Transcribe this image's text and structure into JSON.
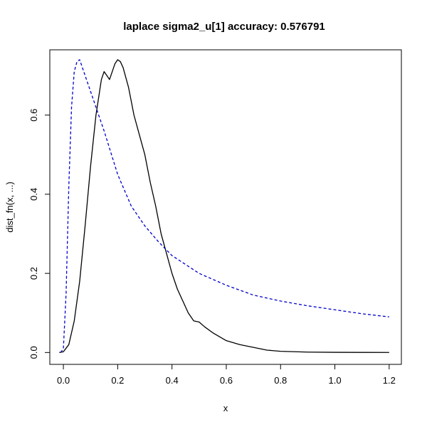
{
  "chart_data": {
    "type": "line",
    "title": "laplace sigma2_u[1] accuracy: 0.576791",
    "xlabel": "x",
    "ylabel": "dist_fn(x, ...)",
    "xlim": [
      -0.05,
      1.245
    ],
    "ylim": [
      -0.03,
      0.765
    ],
    "x_ticks": [
      0.0,
      0.2,
      0.4,
      0.6,
      0.8,
      1.0,
      1.2
    ],
    "x_tick_labels": [
      "0.0",
      "0.2",
      "0.4",
      "0.6",
      "0.8",
      "1.0",
      "1.2"
    ],
    "y_ticks": [
      0.0,
      0.2,
      0.4,
      0.6
    ],
    "y_tick_labels": [
      "0.0",
      "0.2",
      "0.4",
      "0.6"
    ],
    "grid": false,
    "series": [
      {
        "color": "#000000",
        "style": "solid",
        "x": [
          -0.015,
          0.0,
          0.02,
          0.04,
          0.06,
          0.08,
          0.1,
          0.12,
          0.14,
          0.15,
          0.16,
          0.17,
          0.18,
          0.19,
          0.2,
          0.21,
          0.22,
          0.24,
          0.26,
          0.28,
          0.3,
          0.32,
          0.34,
          0.36,
          0.38,
          0.4,
          0.42,
          0.44,
          0.46,
          0.48,
          0.5,
          0.52,
          0.55,
          0.6,
          0.65,
          0.7,
          0.75,
          0.8,
          0.9,
          1.0,
          1.1,
          1.2
        ],
        "y": [
          0.0,
          0.002,
          0.02,
          0.08,
          0.18,
          0.32,
          0.47,
          0.6,
          0.69,
          0.71,
          0.7,
          0.69,
          0.71,
          0.73,
          0.74,
          0.735,
          0.72,
          0.67,
          0.6,
          0.55,
          0.5,
          0.43,
          0.37,
          0.3,
          0.25,
          0.2,
          0.16,
          0.13,
          0.1,
          0.08,
          0.077,
          0.065,
          0.05,
          0.03,
          0.02,
          0.013,
          0.006,
          0.003,
          0.001,
          0.0005,
          0.0002,
          0.0001
        ]
      },
      {
        "color": "#0000cc",
        "style": "dashed",
        "x": [
          -0.01,
          0.0,
          0.01,
          0.02,
          0.03,
          0.04,
          0.05,
          0.06,
          0.07,
          0.08,
          0.1,
          0.12,
          0.15,
          0.2,
          0.25,
          0.3,
          0.35,
          0.4,
          0.5,
          0.6,
          0.7,
          0.8,
          0.9,
          1.0,
          1.1,
          1.2
        ],
        "y": [
          0.0,
          0.01,
          0.15,
          0.42,
          0.62,
          0.71,
          0.735,
          0.74,
          0.72,
          0.7,
          0.66,
          0.62,
          0.56,
          0.45,
          0.37,
          0.32,
          0.28,
          0.245,
          0.2,
          0.17,
          0.145,
          0.13,
          0.118,
          0.108,
          0.098,
          0.09
        ]
      }
    ]
  }
}
